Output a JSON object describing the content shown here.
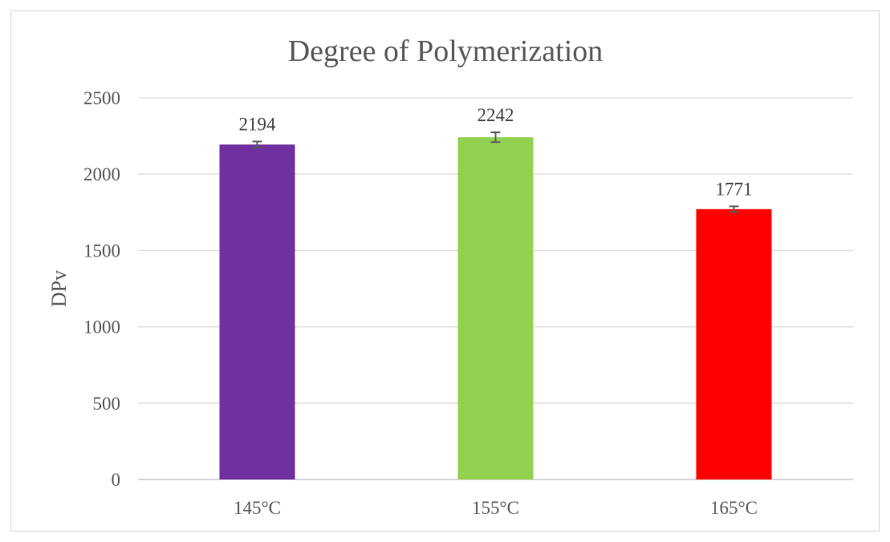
{
  "chart_data": {
    "type": "bar",
    "title": "Degree of Polymerization",
    "xlabel": "",
    "ylabel": "DPv",
    "categories": [
      "145°C",
      "155°C",
      "165°C"
    ],
    "values": [
      2194,
      2242,
      1771
    ],
    "data_labels": [
      "2194",
      "2242",
      "1771"
    ],
    "error": [
      20,
      32,
      18
    ],
    "colors": [
      "#7030a0",
      "#92d050",
      "#ff0000"
    ],
    "ylim": [
      0,
      2500
    ],
    "yticks": [
      0,
      500,
      1000,
      1500,
      2000,
      2500
    ],
    "ytick_labels": [
      "0",
      "500",
      "1000",
      "1500",
      "2000",
      "2500"
    ],
    "grid": true,
    "legend": "none"
  }
}
